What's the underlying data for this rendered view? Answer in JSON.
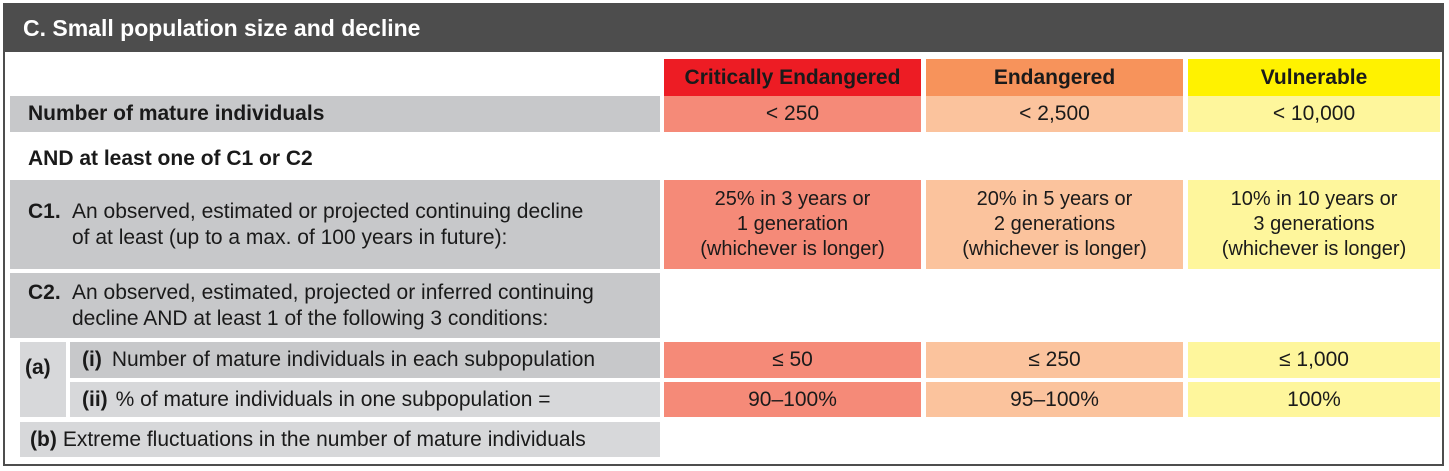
{
  "title": "C. Small population size and decline",
  "headers": {
    "cr": "Critically Endangered",
    "en": "Endangered",
    "vu": "Vulnerable"
  },
  "colors": {
    "title_bg": "#4d4d4d",
    "cr_header": "#ed1c24",
    "en_header": "#f7935b",
    "vu_header": "#fff200",
    "cr_cell": "#f58a78",
    "en_cell": "#fbc39d",
    "vu_cell": "#fef69c",
    "label_bg": "#c7c8ca"
  },
  "mature": {
    "label": "Number of mature individuals",
    "cr": "< 250",
    "en": "< 2,500",
    "vu": "< 10,000"
  },
  "and_line": "AND at least one of C1 or C2",
  "c1": {
    "key": "C1.",
    "line1": "An observed, estimated or projected continuing decline",
    "line2": "of at least (up to a max. of 100 years in future):",
    "cr": [
      "25% in 3 years or",
      "1 generation",
      "(whichever is longer)"
    ],
    "en": [
      "20% in 5 years or",
      "2 generations",
      "(whichever is longer)"
    ],
    "vu": [
      "10% in 10 years or",
      "3 generations",
      "(whichever is longer)"
    ]
  },
  "c2": {
    "key": "C2.",
    "line1": "An observed, estimated, projected or inferred continuing",
    "line2": "decline AND at least 1 of the following 3 conditions:"
  },
  "a": {
    "key": "(a)",
    "i": {
      "key": "(i)",
      "label": "Number of mature individuals in each subpopulation",
      "cr": "≤ 50",
      "en": "≤ 250",
      "vu": "≤ 1,000"
    },
    "ii": {
      "key": "(ii)",
      "label": "% of mature individuals in one subpopulation =",
      "cr": "90–100%",
      "en": "95–100%",
      "vu": "100%"
    }
  },
  "b": {
    "key": "(b)",
    "label": "Extreme fluctuations in the number of mature individuals"
  }
}
